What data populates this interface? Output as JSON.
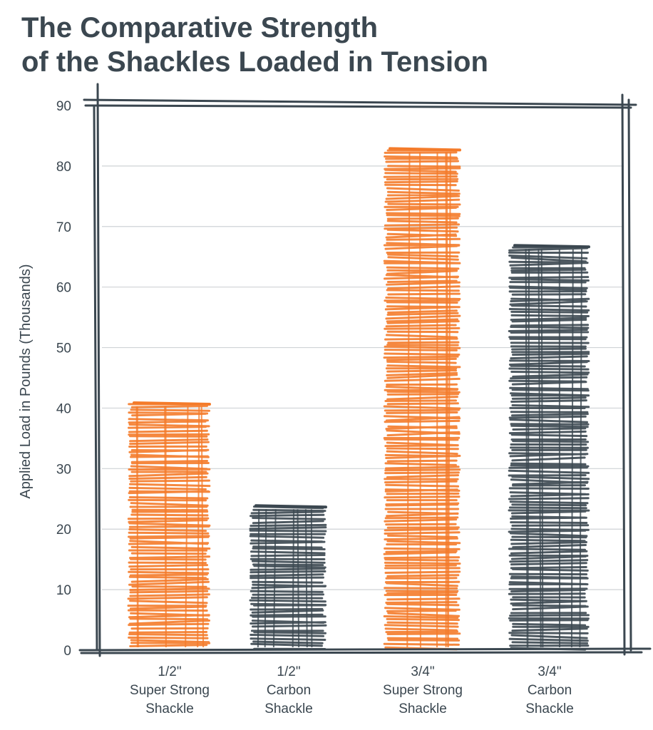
{
  "chart_data": {
    "type": "bar",
    "title_lines": [
      "The Comparative Strength",
      "of the Shackles Loaded in Tension"
    ],
    "ylabel": "Applied Load in Pounds (Thousands)",
    "xlabel": "",
    "ylim": [
      0,
      90
    ],
    "yticks": [
      0,
      10,
      20,
      30,
      40,
      50,
      60,
      70,
      80,
      90
    ],
    "grid": true,
    "categories": [
      [
        "1/2\"",
        "Super Strong",
        "Shackle"
      ],
      [
        "1/2\"",
        "Carbon",
        "Shackle"
      ],
      [
        "3/4\"",
        "Super Strong",
        "Shackle"
      ],
      [
        "3/4\"",
        "Carbon",
        "Shackle"
      ]
    ],
    "values": [
      41,
      24,
      83,
      67
    ],
    "bar_colors": [
      "#f47b2a",
      "#3b4750",
      "#f47b2a",
      "#3b4750"
    ]
  },
  "colors": {
    "text": "#3b4750",
    "frame": "#3b4750",
    "grid": "#cfd3d6",
    "orange": "#f47b2a",
    "slate": "#3b4750"
  }
}
